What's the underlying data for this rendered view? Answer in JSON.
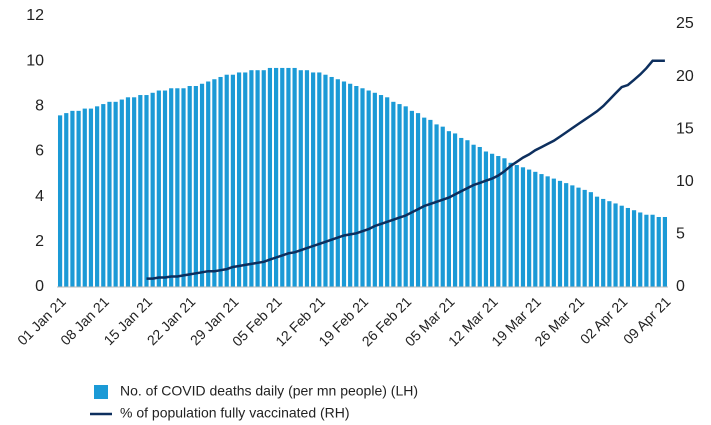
{
  "chart_data": {
    "type": "bar_line",
    "categories": [
      "01 Jan 21",
      null,
      null,
      null,
      null,
      null,
      null,
      "08 Jan 21",
      null,
      null,
      null,
      null,
      null,
      null,
      "15 Jan 21",
      null,
      null,
      null,
      null,
      null,
      null,
      "22 Jan 21",
      null,
      null,
      null,
      null,
      null,
      null,
      "29 Jan 21",
      null,
      null,
      null,
      null,
      null,
      null,
      "05 Feb 21",
      null,
      null,
      null,
      null,
      null,
      null,
      "12 Feb 21",
      null,
      null,
      null,
      null,
      null,
      null,
      "19 Feb 21",
      null,
      null,
      null,
      null,
      null,
      null,
      "26 Feb 21",
      null,
      null,
      null,
      null,
      null,
      null,
      "05 Mar 21",
      null,
      null,
      null,
      null,
      null,
      null,
      "12 Mar 21",
      null,
      null,
      null,
      null,
      null,
      null,
      "19 Mar 21",
      null,
      null,
      null,
      null,
      null,
      null,
      "26 Mar 21",
      null,
      null,
      null,
      null,
      null,
      null,
      "02 Apr 21",
      null,
      null,
      null,
      null,
      null,
      null,
      "09 Apr 21"
    ],
    "series": [
      {
        "name": "No. of COVID deaths daily (per mn people) (LH)",
        "color": "#1b9ad6",
        "type": "bar",
        "values": [
          7.6,
          7.7,
          7.8,
          7.8,
          7.9,
          7.9,
          8.0,
          8.1,
          8.2,
          8.2,
          8.3,
          8.4,
          8.4,
          8.5,
          8.5,
          8.6,
          8.7,
          8.7,
          8.8,
          8.8,
          8.8,
          8.9,
          8.9,
          9.0,
          9.1,
          9.2,
          9.3,
          9.4,
          9.4,
          9.5,
          9.5,
          9.6,
          9.6,
          9.6,
          9.7,
          9.7,
          9.7,
          9.7,
          9.7,
          9.6,
          9.6,
          9.5,
          9.5,
          9.4,
          9.3,
          9.2,
          9.1,
          9.0,
          8.9,
          8.8,
          8.7,
          8.6,
          8.5,
          8.4,
          8.2,
          8.1,
          8.0,
          7.8,
          7.7,
          7.5,
          7.4,
          7.2,
          7.1,
          6.9,
          6.8,
          6.6,
          6.5,
          6.3,
          6.2,
          6.0,
          5.9,
          5.8,
          5.7,
          5.5,
          5.4,
          5.3,
          5.2,
          5.1,
          5.0,
          4.9,
          4.8,
          4.7,
          4.6,
          4.5,
          4.4,
          4.3,
          4.2,
          4.0,
          3.9,
          3.8,
          3.7,
          3.6,
          3.5,
          3.4,
          3.3,
          3.2,
          3.2,
          3.1,
          3.1
        ]
      },
      {
        "name": "% of population fully vaccinated (RH)",
        "color": "#0d2f5e",
        "type": "line",
        "axis": "y2",
        "values": [
          null,
          null,
          null,
          null,
          null,
          null,
          null,
          null,
          null,
          null,
          null,
          null,
          null,
          null,
          0.8,
          0.8,
          0.9,
          0.9,
          1.0,
          1.0,
          1.1,
          1.2,
          1.3,
          1.4,
          1.5,
          1.5,
          1.6,
          1.7,
          1.9,
          2.0,
          2.1,
          2.2,
          2.3,
          2.4,
          2.6,
          2.8,
          3.0,
          3.2,
          3.3,
          3.5,
          3.7,
          3.9,
          4.1,
          4.3,
          4.5,
          4.7,
          4.9,
          5.0,
          5.1,
          5.3,
          5.5,
          5.8,
          6.0,
          6.2,
          6.4,
          6.6,
          6.8,
          7.1,
          7.4,
          7.7,
          7.9,
          8.1,
          8.3,
          8.5,
          8.8,
          9.1,
          9.4,
          9.7,
          9.9,
          10.1,
          10.3,
          10.6,
          11.0,
          11.5,
          11.9,
          12.3,
          12.6,
          13.0,
          13.3,
          13.6,
          13.9,
          14.3,
          14.7,
          15.1,
          15.5,
          15.9,
          16.3,
          16.7,
          17.2,
          17.8,
          18.4,
          19.0,
          19.2,
          19.7,
          20.2,
          20.8,
          21.5,
          21.5,
          21.5
        ]
      }
    ],
    "ylim": [
      0,
      12
    ],
    "yticks": [
      0,
      2,
      4,
      6,
      8,
      10,
      12
    ],
    "y2lim": [
      0,
      25
    ],
    "y2ticks": [
      0,
      5,
      10,
      15,
      20,
      25
    ],
    "grid": false
  }
}
